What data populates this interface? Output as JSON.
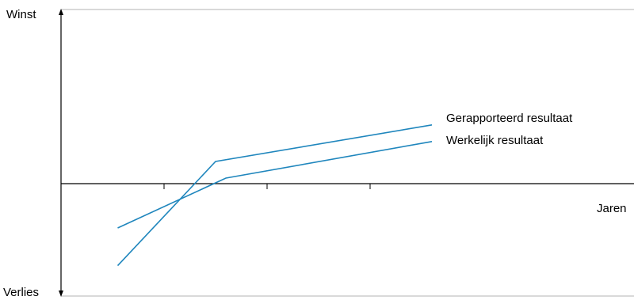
{
  "chart_data": {
    "type": "line",
    "xlabel": "Jaren",
    "ylabel_top": "Winst",
    "ylabel_bottom": "Verlies",
    "x_ticks": [
      1,
      2,
      3
    ],
    "xlim": [
      0,
      6
    ],
    "ylim": [
      -1,
      1
    ],
    "color": "#1f86bd",
    "series": [
      {
        "name": "Gerapporteerd resultaat",
        "points": [
          [
            0.55,
            -0.74
          ],
          [
            1.5,
            0.2
          ],
          [
            3.6,
            0.53
          ]
        ]
      },
      {
        "name": "Werkelijk resultaat",
        "points": [
          [
            0.55,
            -0.4
          ],
          [
            1.6,
            0.05
          ],
          [
            3.6,
            0.38
          ]
        ]
      }
    ]
  }
}
